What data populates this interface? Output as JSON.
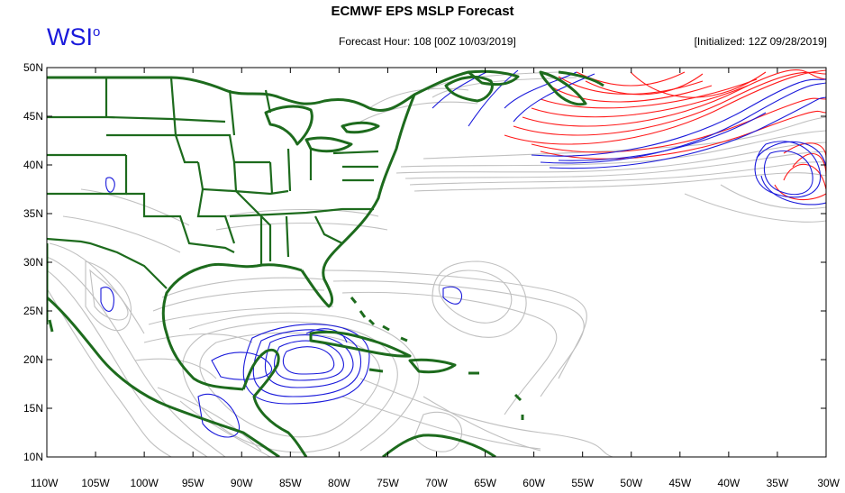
{
  "header": {
    "title": "ECMWF EPS MSLP Forecast",
    "logo_text": "WSI",
    "logo_mark": "o",
    "forecast_hour": "Forecast Hour: 108 [00Z 10/03/2019]",
    "initialized": "[Initialized: 12Z 09/28/2019]"
  },
  "map": {
    "lon_ticks": [
      "110W",
      "105W",
      "100W",
      "95W",
      "90W",
      "85W",
      "80W",
      "75W",
      "70W",
      "65W",
      "60W",
      "55W",
      "50W",
      "45W",
      "40W",
      "35W",
      "30W"
    ],
    "lat_ticks": [
      "50N",
      "45N",
      "40N",
      "35N",
      "30N",
      "25N",
      "20N",
      "15N",
      "10N"
    ],
    "lon_range": [
      -110,
      -30
    ],
    "lat_range": [
      10,
      50
    ],
    "colors": {
      "coastline": "#1d6b1d",
      "member_isobar": "#c0c0c0",
      "low_contour": "#1a1adb",
      "high_contour": "#ff1a1a",
      "frame": "#000000"
    }
  }
}
